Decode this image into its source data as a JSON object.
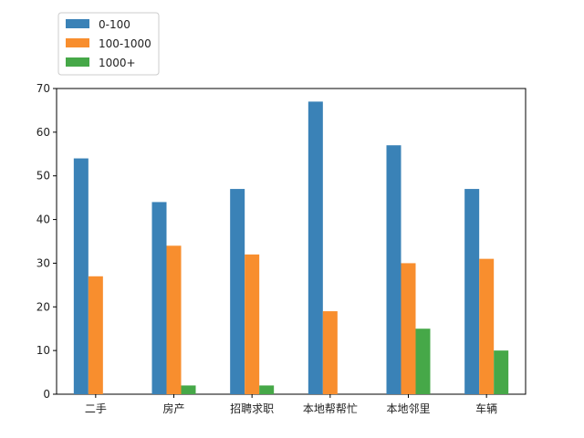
{
  "chart_data": {
    "type": "bar",
    "categories": [
      "二手",
      "房产",
      "招聘求职",
      "本地帮帮忙",
      "本地邻里",
      "车辆"
    ],
    "series": [
      {
        "name": "0-100",
        "values": [
          54,
          44,
          47,
          67,
          57,
          47
        ],
        "color": "#3a82b7"
      },
      {
        "name": "100-1000",
        "values": [
          27,
          34,
          32,
          19,
          30,
          31
        ],
        "color": "#f88e2e"
      },
      {
        "name": "1000+",
        "values": [
          0,
          2,
          2,
          0,
          15,
          10
        ],
        "color": "#46a848"
      }
    ],
    "title": "",
    "xlabel": "",
    "ylabel": "",
    "ylim": [
      0,
      70
    ],
    "yticks": [
      0,
      10,
      20,
      30,
      40,
      50,
      60,
      70
    ],
    "grid": false,
    "legend_position": "top-left, outside above axes"
  }
}
